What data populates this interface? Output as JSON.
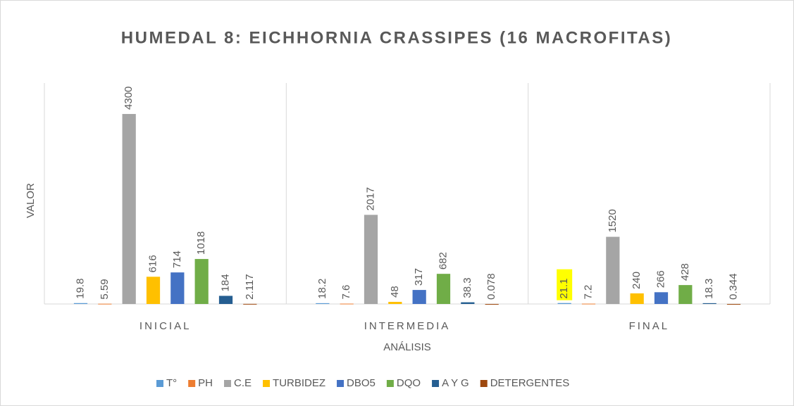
{
  "chart_data": {
    "type": "bar",
    "title": "HUMEDAL 8: EICHHORNIA CRASSIPES (16 MACROFITAS)",
    "x_label": "ANÁLISIS",
    "y_label": "VALOR",
    "categories": [
      "INICIAL",
      "INTERMEDIA",
      "FINAL"
    ],
    "series": [
      {
        "name": "T°",
        "color": "#5b9bd5",
        "values": [
          19.8,
          18.2,
          21.1
        ]
      },
      {
        "name": "PH",
        "color": "#ed7d31",
        "values": [
          5.59,
          7.6,
          7.2
        ]
      },
      {
        "name": "C.E",
        "color": "#a5a5a5",
        "values": [
          4300,
          2017,
          1520
        ]
      },
      {
        "name": "TURBIDEZ",
        "color": "#ffc000",
        "values": [
          616,
          48,
          240
        ]
      },
      {
        "name": "DBO5",
        "color": "#4472c4",
        "values": [
          714,
          317,
          266
        ]
      },
      {
        "name": "DQO",
        "color": "#70ad47",
        "values": [
          1018,
          682,
          428
        ]
      },
      {
        "name": "A Y G",
        "color": "#255e91",
        "values": [
          184,
          38.3,
          18.3
        ]
      },
      {
        "name": "DETERGENTES",
        "color": "#9e480e",
        "values": [
          2.117,
          0.078,
          0.344
        ]
      }
    ],
    "ylim": [
      0,
      5000
    ],
    "highlight": {
      "series": 0,
      "category": 2,
      "color": "#ffff00"
    },
    "legend": "bottom"
  }
}
